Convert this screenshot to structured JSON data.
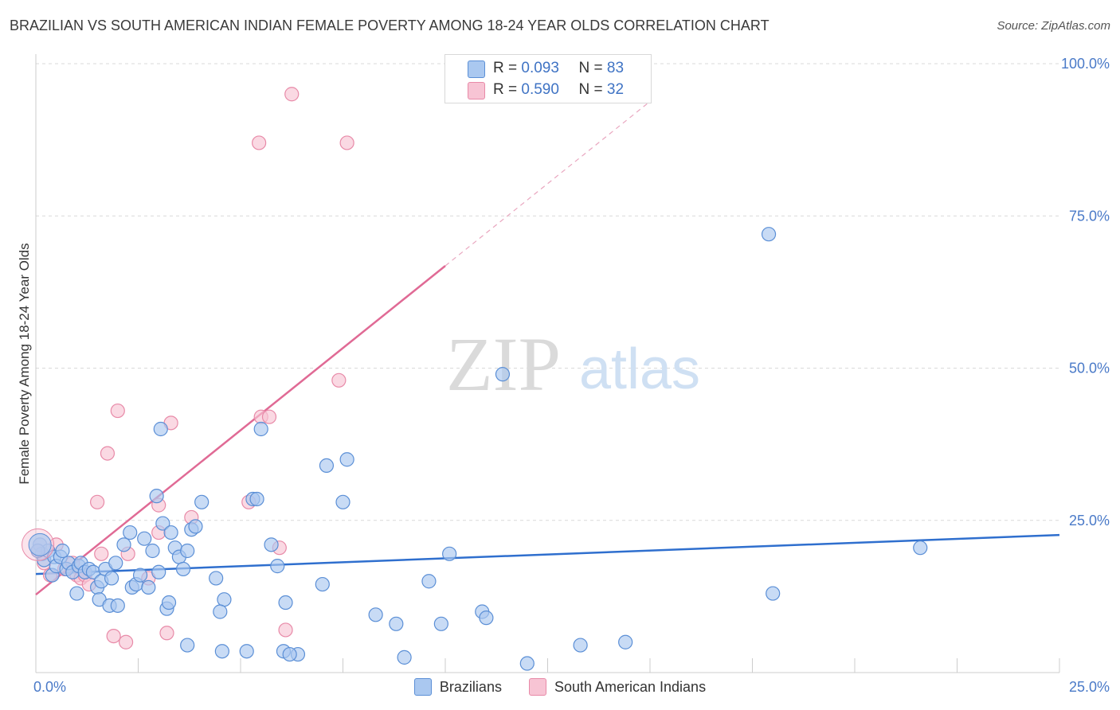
{
  "title": "BRAZILIAN VS SOUTH AMERICAN INDIAN FEMALE POVERTY AMONG 18-24 YEAR OLDS CORRELATION CHART",
  "source": "Source: ZipAtlas.com",
  "watermark": {
    "zip": "ZIP",
    "atlas": "atlas"
  },
  "legend_top": [
    {
      "r_label": "R =",
      "r_value": "0.093",
      "n_label": "N =",
      "n_value": "83"
    },
    {
      "r_label": "R =",
      "r_value": "0.590",
      "n_label": "N =",
      "n_value": "32"
    }
  ],
  "legend_bottom": [
    "Brazilians",
    "South American Indians"
  ],
  "colors": {
    "blue_fill": "#aac8f0",
    "blue_stroke": "#5b8fd6",
    "blue_line": "#2f6fce",
    "pink_fill": "#f7c4d4",
    "pink_stroke": "#e88aa8",
    "pink_line": "#e06a95",
    "tick_text": "#4a7ac8",
    "grid": "#d9d9d9"
  },
  "chart_data": {
    "type": "scatter",
    "title": "BRAZILIAN VS SOUTH AMERICAN INDIAN FEMALE POVERTY AMONG 18-24 YEAR OLDS CORRELATION CHART",
    "xlabel": "",
    "ylabel": "Female Poverty Among 18-24 Year Olds",
    "xlim": [
      0,
      25
    ],
    "ylim": [
      0,
      100
    ],
    "x_tick_labels": [
      "0.0%",
      "25.0%"
    ],
    "y_tick_labels": [
      "25.0%",
      "50.0%",
      "75.0%",
      "100.0%"
    ],
    "y_tick_values": [
      25,
      50,
      75,
      100
    ],
    "grid": true,
    "series": [
      {
        "name": "Brazilians",
        "r": 0.093,
        "n": 83,
        "trend": {
          "x0": 0,
          "y0": 16.2,
          "x1": 25,
          "y1": 22.6
        },
        "points": [
          [
            0.1,
            21
          ],
          [
            0.15,
            19.5
          ],
          [
            0.2,
            18.5
          ],
          [
            0.3,
            20
          ],
          [
            0.4,
            16
          ],
          [
            0.45,
            19
          ],
          [
            0.5,
            17.5
          ],
          [
            0.6,
            19
          ],
          [
            0.65,
            20
          ],
          [
            0.75,
            17
          ],
          [
            0.8,
            18
          ],
          [
            0.9,
            16.5
          ],
          [
            1.0,
            13
          ],
          [
            1.05,
            17.5
          ],
          [
            1.1,
            18
          ],
          [
            1.2,
            16.5
          ],
          [
            1.3,
            17
          ],
          [
            1.4,
            16.5
          ],
          [
            1.5,
            14
          ],
          [
            1.55,
            12
          ],
          [
            1.6,
            15
          ],
          [
            1.7,
            17
          ],
          [
            1.8,
            11
          ],
          [
            1.85,
            15.5
          ],
          [
            1.95,
            18
          ],
          [
            2.0,
            11
          ],
          [
            2.15,
            21
          ],
          [
            2.3,
            23
          ],
          [
            2.35,
            14
          ],
          [
            2.45,
            14.5
          ],
          [
            2.55,
            16
          ],
          [
            2.65,
            22
          ],
          [
            2.75,
            14
          ],
          [
            2.85,
            20
          ],
          [
            2.95,
            29
          ],
          [
            3.0,
            16.5
          ],
          [
            3.05,
            40
          ],
          [
            3.1,
            24.5
          ],
          [
            3.2,
            10.5
          ],
          [
            3.25,
            11.5
          ],
          [
            3.3,
            23
          ],
          [
            3.4,
            20.5
          ],
          [
            3.5,
            19
          ],
          [
            3.6,
            17
          ],
          [
            3.7,
            20
          ],
          [
            3.8,
            23.5
          ],
          [
            3.9,
            24
          ],
          [
            4.05,
            28
          ],
          [
            4.4,
            15.5
          ],
          [
            4.6,
            12
          ],
          [
            4.5,
            10
          ],
          [
            5.3,
            28.5
          ],
          [
            5.4,
            28.5
          ],
          [
            5.5,
            40
          ],
          [
            5.75,
            21
          ],
          [
            5.9,
            17.5
          ],
          [
            6.1,
            11.5
          ],
          [
            6.4,
            3
          ],
          [
            7.0,
            14.5
          ],
          [
            7.1,
            34
          ],
          [
            7.5,
            28
          ],
          [
            7.6,
            35
          ],
          [
            8.3,
            9.5
          ],
          [
            8.8,
            8
          ],
          [
            9.0,
            2.5
          ],
          [
            9.6,
            15
          ],
          [
            9.9,
            8
          ],
          [
            10.1,
            19.5
          ],
          [
            10.9,
            10
          ],
          [
            11.0,
            9
          ],
          [
            11.4,
            49
          ],
          [
            12.0,
            1.5
          ],
          [
            13.3,
            4.5
          ],
          [
            14.4,
            5
          ],
          [
            17.9,
            72
          ],
          [
            18.0,
            13
          ],
          [
            21.6,
            20.5
          ],
          [
            4.55,
            3.5
          ],
          [
            5.15,
            3.5
          ],
          [
            6.05,
            3.5
          ],
          [
            3.7,
            4.5
          ],
          [
            6.2,
            3
          ],
          [
            0.05,
            20
          ]
        ]
      },
      {
        "name": "South American Indians",
        "r": 0.59,
        "n": 32,
        "trend": {
          "x0": 0,
          "y0": 12.8,
          "x1": 10,
          "y1": 66.8,
          "dash_x1": 15,
          "dash_y1": 93.8
        },
        "points": [
          [
            0.05,
            20
          ],
          [
            0.2,
            18
          ],
          [
            0.35,
            16
          ],
          [
            0.5,
            21
          ],
          [
            0.7,
            17
          ],
          [
            0.9,
            18
          ],
          [
            1.0,
            16
          ],
          [
            1.1,
            15.5
          ],
          [
            1.2,
            16
          ],
          [
            1.3,
            14.5
          ],
          [
            1.5,
            28
          ],
          [
            1.6,
            19.5
          ],
          [
            1.75,
            36
          ],
          [
            1.9,
            6
          ],
          [
            2.0,
            43
          ],
          [
            2.2,
            5
          ],
          [
            2.25,
            19.5
          ],
          [
            2.75,
            15.5
          ],
          [
            3.0,
            27.5
          ],
          [
            3.0,
            23
          ],
          [
            3.2,
            6.5
          ],
          [
            3.3,
            41
          ],
          [
            3.8,
            25.5
          ],
          [
            5.2,
            28
          ],
          [
            5.5,
            42
          ],
          [
            5.7,
            42
          ],
          [
            5.95,
            20.5
          ],
          [
            6.1,
            7
          ],
          [
            6.25,
            95
          ],
          [
            7.4,
            48
          ],
          [
            5.45,
            87
          ],
          [
            7.6,
            87
          ]
        ]
      }
    ]
  }
}
